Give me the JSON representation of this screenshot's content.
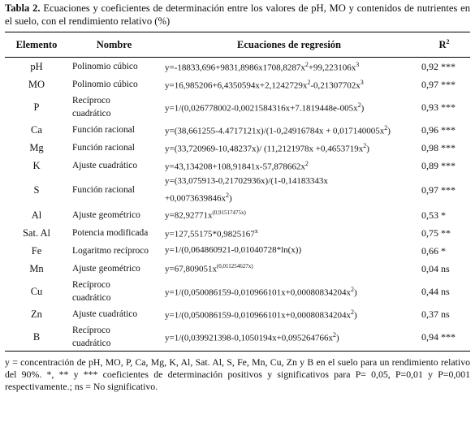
{
  "caption": {
    "label": "Tabla 2.",
    "text": " Ecuaciones y coeficientes de determinación entre los valores de pH, MO y contenidos de nutrientes en el suelo, con el rendimiento relativo (%)"
  },
  "headers": {
    "elemento": "Elemento",
    "nombre": "Nombre",
    "ecuaciones": "Ecuaciones de regresión",
    "r2": "R²"
  },
  "rows": [
    {
      "el": "pH",
      "name": [
        "Polinomio cúbico"
      ],
      "eq": [
        "y=-18833,696+9831,8986x1708,8287x²+99,223106x³"
      ],
      "r2": "0,92 ***"
    },
    {
      "el": "MO",
      "name": [
        "Polinomio cúbico"
      ],
      "eq": [
        "y=16,985206+6,4350594x+2,1242729x²-0,21307702x³"
      ],
      "r2": "0,97 ***"
    },
    {
      "el": "P",
      "name": [
        "Recíproco",
        "cuadrático"
      ],
      "eq": [
        "y=1/(0,026778002-0,0021584316x+7.1819448e-005x²)"
      ],
      "r2": "0,93 ***"
    },
    {
      "el": "Ca",
      "name": [
        "Función racional"
      ],
      "eq": [
        "y=(38,661255-4.4717121x)/(1-0,24916784x + 0,017140005x²)"
      ],
      "r2": "0,96 ***"
    },
    {
      "el": "Mg",
      "name": [
        "Función racional"
      ],
      "eq": [
        "y=(33,720969-10,48237x)/ (11,2121978x +0,4653719x²)"
      ],
      "r2": "0,98 ***"
    },
    {
      "el": "K",
      "name": [
        "Ajuste cuadrático"
      ],
      "eq": [
        "y=43,134208+108,91841x-57,878662x²"
      ],
      "r2": "0,89 ***"
    },
    {
      "el": "S",
      "name": [
        "Función racional"
      ],
      "eq": [
        "y=(33,075913-0,21702936x)/(1-0,14183343x",
        "+0,0073639846x²)"
      ],
      "r2": "0,97 ***"
    },
    {
      "el": "Al",
      "name": [
        "Ajuste geométrico"
      ],
      "eq": [
        "y=82,92771x^(0,91517475x)"
      ],
      "r2": "0,53 *"
    },
    {
      "el": "Sat. Al",
      "name": [
        "Potencia modificada"
      ],
      "eq": [
        "y=127,55175*0,9825167^x"
      ],
      "r2": "0,75 **"
    },
    {
      "el": "Fe",
      "name": [
        "Logaritmo recíproco"
      ],
      "eq": [
        "y=1/(0,064860921-0,01040728*ln(x))"
      ],
      "r2": "0,66 *"
    },
    {
      "el": "Mn",
      "name": [
        "Ajuste geométrico"
      ],
      "eq": [
        "y=67,809051x^(0,011254627x)"
      ],
      "r2": "0,04 ns"
    },
    {
      "el": "Cu",
      "name": [
        "Recíproco",
        "cuadrático"
      ],
      "eq": [
        "y=1/(0,050086159-0,010966101x+0,00080834204x²)"
      ],
      "r2": "0,44 ns"
    },
    {
      "el": "Zn",
      "name": [
        "Ajuste cuadrático"
      ],
      "eq": [
        "y=1/(0,050086159-0,010966101x+0,00080834204x²)"
      ],
      "r2": "0,37 ns"
    },
    {
      "el": "B",
      "name": [
        "Recíproco",
        "cuadrático"
      ],
      "eq": [
        "y=1/(0,039921398-0,1050194x+0,095264766x²)"
      ],
      "r2": "0,94 ***"
    }
  ],
  "footnote": "y = concentración de pH, MO, P, Ca, Mg, K, Al, Sat. Al, S, Fe, Mn, Cu, Zn y B en el suelo para un rendimiento relativo del 90%. *, ** y *** coeficientes de determinación  positivos y significativos para P= 0,05, P=0,01 y P=0,001 respectivamente.; ns = No significativo."
}
